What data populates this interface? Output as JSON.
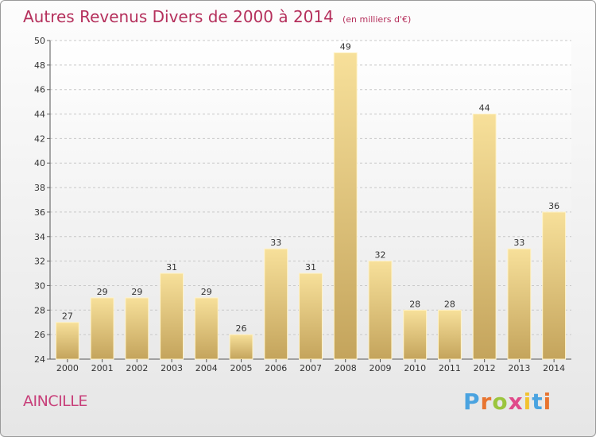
{
  "chart_data": {
    "type": "bar",
    "title": "Autres Revenus Divers de 2000 à 2014",
    "subtitle": "(en milliers d'€)",
    "categories": [
      "2000",
      "2001",
      "2002",
      "2003",
      "2004",
      "2005",
      "2006",
      "2007",
      "2008",
      "2009",
      "2010",
      "2011",
      "2012",
      "2013",
      "2014"
    ],
    "values": [
      27,
      29,
      29,
      31,
      29,
      26,
      33,
      31,
      49,
      32,
      28,
      28,
      44,
      33,
      36
    ],
    "ylim": [
      24,
      50
    ],
    "yticks": [
      24,
      26,
      28,
      30,
      32,
      34,
      36,
      38,
      40,
      42,
      44,
      46,
      48,
      50
    ],
    "grid": true,
    "bar_color": "#dfc078"
  },
  "footer": {
    "location": "AINCILLE",
    "brand": "Proxiti",
    "brand_colors": [
      "#4aa3e0",
      "#e8742f",
      "#9bc53d",
      "#e04a8a",
      "#f2c230",
      "#4aa3e0",
      "#e8742f"
    ]
  }
}
